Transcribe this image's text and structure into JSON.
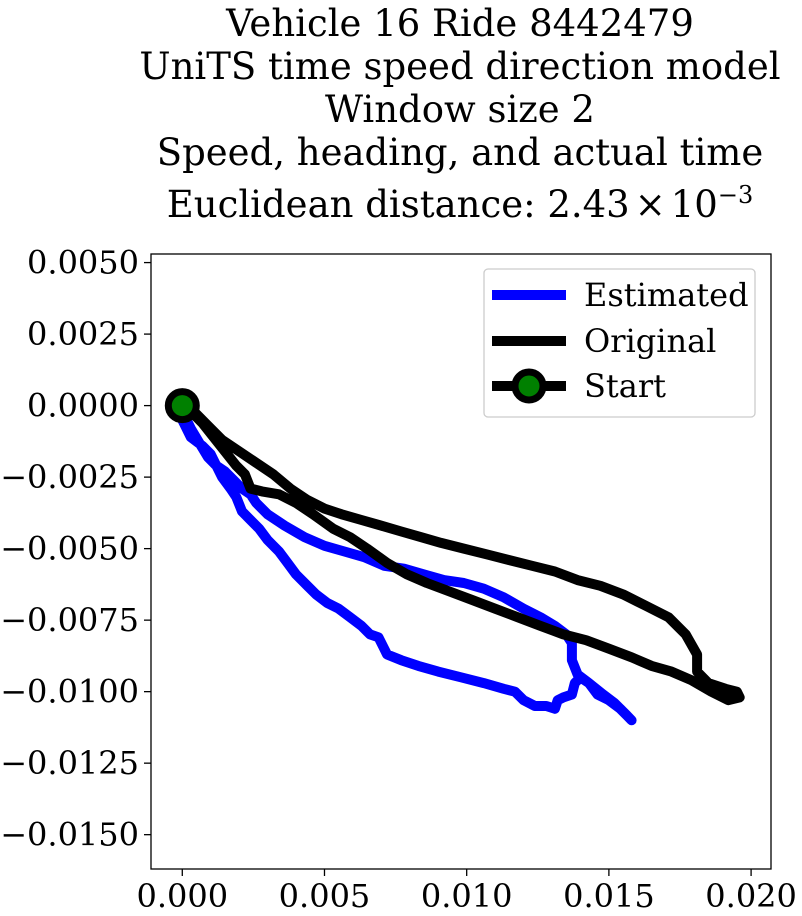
{
  "chart_data": {
    "type": "line",
    "title_lines": [
      "Vehicle 16 Ride 8442479",
      "UniTS time speed direction model",
      "Window size 2",
      "Speed, heading, and actual time"
    ],
    "title_distance_prefix": "Euclidean distance: ",
    "title_distance_mantissa": "2.43",
    "title_distance_times": "×",
    "title_distance_base": "10",
    "title_distance_exponent": "−3",
    "xlim": [
      -0.0011,
      0.0207
    ],
    "ylim": [
      -0.0162,
      0.0053
    ],
    "x_ticks": [
      0.0,
      0.005,
      0.01,
      0.015,
      0.02
    ],
    "x_tick_labels": [
      "0.000",
      "0.005",
      "0.010",
      "0.015",
      "0.020"
    ],
    "y_ticks": [
      0.005,
      0.0025,
      0.0,
      -0.0025,
      -0.005,
      -0.0075,
      -0.01,
      -0.0125,
      -0.015
    ],
    "y_tick_labels": [
      "0.0050",
      "0.0025",
      "0.0000",
      "−0.0025",
      "−0.0050",
      "−0.0075",
      "−0.0100",
      "−0.0125",
      "−0.0150"
    ],
    "legend_placement": "upper right",
    "grid": false,
    "series": [
      {
        "name": "Estimated",
        "color": "#0000ff",
        "x": [
          0.0,
          0.0003,
          0.0007,
          0.001,
          0.0012,
          0.0014,
          0.0017,
          0.0019,
          0.0021,
          0.0024,
          0.0027,
          0.003,
          0.0034,
          0.0037,
          0.004,
          0.0044,
          0.0047,
          0.0051,
          0.0055,
          0.0059,
          0.0063,
          0.0066,
          0.0069,
          0.0071,
          0.0072,
          0.0077,
          0.0083,
          0.009,
          0.0098,
          0.0106,
          0.0113,
          0.0117,
          0.012,
          0.0124,
          0.0128,
          0.0131,
          0.0132,
          0.0134,
          0.0137,
          0.0138,
          0.014,
          0.0143,
          0.0146,
          0.015,
          0.0154,
          0.0157,
          0.0158,
          0.0156,
          0.0152,
          0.0148,
          0.0143,
          0.0139,
          0.0137,
          0.0137,
          0.0135,
          0.0131,
          0.0126,
          0.012,
          0.0113,
          0.0106,
          0.0099,
          0.0092,
          0.0085,
          0.0078,
          0.0071,
          0.0064,
          0.0057,
          0.005,
          0.0043,
          0.0036,
          0.003,
          0.0026,
          0.0024,
          0.0021,
          0.0018,
          0.0015,
          0.0012,
          0.0009,
          0.0006,
          0.0003,
          0.0001
        ],
        "y": [
          -0.0005,
          -0.0011,
          -0.0014,
          -0.0017,
          -0.0021,
          -0.0025,
          -0.0029,
          -0.0032,
          -0.0037,
          -0.004,
          -0.0043,
          -0.0047,
          -0.0051,
          -0.0055,
          -0.0059,
          -0.0063,
          -0.0066,
          -0.0069,
          -0.0071,
          -0.0074,
          -0.0077,
          -0.008,
          -0.0081,
          -0.0085,
          -0.0087,
          -0.0089,
          -0.0091,
          -0.0093,
          -0.0095,
          -0.0097,
          -0.0099,
          -0.01,
          -0.0103,
          -0.0105,
          -0.0105,
          -0.0106,
          -0.0103,
          -0.0102,
          -0.0101,
          -0.0097,
          -0.0095,
          -0.0097,
          -0.0101,
          -0.0103,
          -0.0106,
          -0.0109,
          -0.011,
          -0.0108,
          -0.0104,
          -0.0101,
          -0.0097,
          -0.0094,
          -0.0089,
          -0.0083,
          -0.008,
          -0.0077,
          -0.0074,
          -0.0071,
          -0.0067,
          -0.0064,
          -0.0062,
          -0.0061,
          -0.0059,
          -0.0057,
          -0.0056,
          -0.0053,
          -0.0051,
          -0.0049,
          -0.0046,
          -0.0042,
          -0.0038,
          -0.0034,
          -0.0031,
          -0.0029,
          -0.0026,
          -0.0023,
          -0.0021,
          -0.0018,
          -0.0013,
          -0.0008,
          -0.0004
        ]
      },
      {
        "name": "Original",
        "color": "#000000",
        "x": [
          0.0,
          0.0004,
          0.0009,
          0.0014,
          0.002,
          0.0026,
          0.0032,
          0.0038,
          0.0044,
          0.005,
          0.0056,
          0.0063,
          0.007,
          0.0077,
          0.0084,
          0.0091,
          0.0099,
          0.0107,
          0.0115,
          0.0123,
          0.0131,
          0.0139,
          0.0147,
          0.0155,
          0.0163,
          0.0171,
          0.0177,
          0.0181,
          0.0181,
          0.0185,
          0.0191,
          0.0195,
          0.0196,
          0.0192,
          0.0186,
          0.0179,
          0.0172,
          0.0165,
          0.0158,
          0.015,
          0.0142,
          0.0134,
          0.0126,
          0.0118,
          0.011,
          0.0102,
          0.0094,
          0.0086,
          0.0079,
          0.0072,
          0.0065,
          0.0059,
          0.0053,
          0.0046,
          0.004,
          0.0034,
          0.0028,
          0.0024,
          0.0022,
          0.0019,
          0.0015,
          0.0011,
          0.0007,
          0.0003,
          0.0
        ],
        "y": [
          0.0,
          -0.0002,
          -0.0007,
          -0.0012,
          -0.0016,
          -0.002,
          -0.0024,
          -0.0029,
          -0.0033,
          -0.0036,
          -0.0038,
          -0.004,
          -0.0042,
          -0.0044,
          -0.0046,
          -0.0048,
          -0.005,
          -0.0052,
          -0.0054,
          -0.0056,
          -0.0058,
          -0.0061,
          -0.0063,
          -0.0066,
          -0.007,
          -0.0074,
          -0.008,
          -0.0087,
          -0.0093,
          -0.0097,
          -0.0099,
          -0.01,
          -0.0102,
          -0.0103,
          -0.01,
          -0.0096,
          -0.0093,
          -0.0091,
          -0.0088,
          -0.0085,
          -0.0082,
          -0.008,
          -0.0077,
          -0.0074,
          -0.0071,
          -0.0068,
          -0.0065,
          -0.0062,
          -0.0059,
          -0.0055,
          -0.005,
          -0.0046,
          -0.0043,
          -0.0038,
          -0.0034,
          -0.0031,
          -0.003,
          -0.0029,
          -0.0024,
          -0.0021,
          -0.0016,
          -0.0011,
          -0.0006,
          -0.0002,
          0.0
        ]
      },
      {
        "name": "Start",
        "color": "#000000",
        "marker_fill": "#008000",
        "x": [
          0.0
        ],
        "y": [
          0.0
        ]
      }
    ]
  }
}
